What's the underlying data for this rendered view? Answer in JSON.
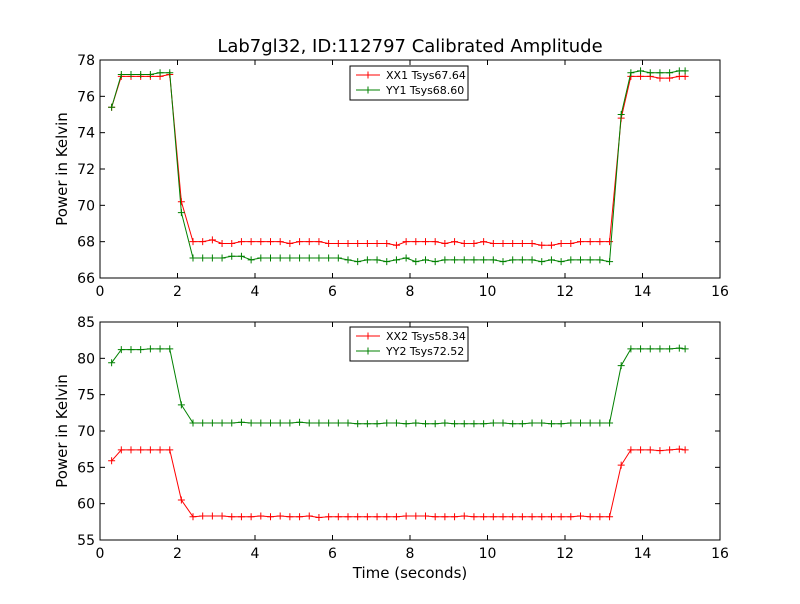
{
  "chart_data": [
    {
      "type": "line",
      "title": "Lab7gl32, ID:112797 Calibrated Amplitude",
      "xlabel": "",
      "ylabel": "Power in Kelvin",
      "xlim": [
        0,
        16
      ],
      "ylim": [
        66,
        78
      ],
      "xticks": [
        0,
        2,
        4,
        6,
        8,
        10,
        12,
        14,
        16
      ],
      "yticks": [
        66,
        68,
        70,
        72,
        74,
        76,
        78
      ],
      "legend_position": "top-center",
      "x": [
        0.3,
        0.55,
        0.8,
        1.05,
        1.3,
        1.55,
        1.8,
        2.1,
        2.4,
        2.65,
        2.9,
        3.15,
        3.4,
        3.65,
        3.9,
        4.15,
        4.4,
        4.65,
        4.9,
        5.15,
        5.4,
        5.65,
        5.9,
        6.15,
        6.4,
        6.65,
        6.9,
        7.15,
        7.4,
        7.65,
        7.9,
        8.15,
        8.4,
        8.65,
        8.9,
        9.15,
        9.4,
        9.65,
        9.9,
        10.15,
        10.4,
        10.65,
        10.9,
        11.15,
        11.4,
        11.65,
        11.9,
        12.15,
        12.4,
        12.65,
        12.9,
        13.15,
        13.45,
        13.7,
        13.95,
        14.2,
        14.45,
        14.7,
        14.95,
        15.1
      ],
      "series": [
        {
          "name": "XX1 Tsys67.64",
          "color": "#ff0000",
          "values": [
            75.4,
            77.1,
            77.1,
            77.1,
            77.1,
            77.1,
            77.2,
            70.2,
            68.0,
            68.0,
            68.1,
            67.9,
            67.9,
            68.0,
            68.0,
            68.0,
            68.0,
            68.0,
            67.9,
            68.0,
            68.0,
            68.0,
            67.9,
            67.9,
            67.9,
            67.9,
            67.9,
            67.9,
            67.9,
            67.8,
            68.0,
            68.0,
            68.0,
            68.0,
            67.9,
            68.0,
            67.9,
            67.9,
            68.0,
            67.9,
            67.9,
            67.9,
            67.9,
            67.9,
            67.8,
            67.8,
            67.9,
            67.9,
            68.0,
            68.0,
            68.0,
            68.0,
            74.8,
            77.1,
            77.1,
            77.1,
            77.0,
            77.0,
            77.1,
            77.1
          ]
        },
        {
          "name": "YY1 Tsys68.60",
          "color": "#008000",
          "values": [
            75.4,
            77.2,
            77.2,
            77.2,
            77.2,
            77.3,
            77.3,
            69.6,
            67.1,
            67.1,
            67.1,
            67.1,
            67.2,
            67.2,
            67.0,
            67.1,
            67.1,
            67.1,
            67.1,
            67.1,
            67.1,
            67.1,
            67.1,
            67.1,
            67.0,
            66.9,
            67.0,
            67.0,
            66.9,
            67.0,
            67.1,
            66.9,
            67.0,
            66.9,
            67.0,
            67.0,
            67.0,
            67.0,
            67.0,
            67.0,
            66.9,
            67.0,
            67.0,
            67.0,
            66.9,
            67.0,
            66.9,
            67.0,
            67.0,
            67.0,
            67.0,
            66.9,
            75.0,
            77.3,
            77.4,
            77.3,
            77.3,
            77.3,
            77.4,
            77.4
          ]
        }
      ]
    },
    {
      "type": "line",
      "title": "",
      "xlabel": "Time (seconds)",
      "ylabel": "Power in Kelvin",
      "xlim": [
        0,
        16
      ],
      "ylim": [
        55,
        85
      ],
      "xticks": [
        0,
        2,
        4,
        6,
        8,
        10,
        12,
        14,
        16
      ],
      "yticks": [
        55,
        60,
        65,
        70,
        75,
        80,
        85
      ],
      "legend_position": "top-center",
      "x": [
        0.3,
        0.55,
        0.8,
        1.05,
        1.3,
        1.55,
        1.8,
        2.1,
        2.4,
        2.65,
        2.9,
        3.15,
        3.4,
        3.65,
        3.9,
        4.15,
        4.4,
        4.65,
        4.9,
        5.15,
        5.4,
        5.65,
        5.9,
        6.15,
        6.4,
        6.65,
        6.9,
        7.15,
        7.4,
        7.65,
        7.9,
        8.15,
        8.4,
        8.65,
        8.9,
        9.15,
        9.4,
        9.65,
        9.9,
        10.15,
        10.4,
        10.65,
        10.9,
        11.15,
        11.4,
        11.65,
        11.9,
        12.15,
        12.4,
        12.65,
        12.9,
        13.15,
        13.45,
        13.7,
        13.95,
        14.2,
        14.45,
        14.7,
        14.95,
        15.1
      ],
      "series": [
        {
          "name": "XX2 Tsys58.34",
          "color": "#ff0000",
          "values": [
            65.9,
            67.4,
            67.4,
            67.4,
            67.4,
            67.4,
            67.4,
            60.5,
            58.2,
            58.3,
            58.3,
            58.3,
            58.2,
            58.2,
            58.2,
            58.3,
            58.2,
            58.3,
            58.2,
            58.2,
            58.3,
            58.1,
            58.2,
            58.2,
            58.2,
            58.2,
            58.2,
            58.2,
            58.2,
            58.2,
            58.3,
            58.3,
            58.3,
            58.2,
            58.2,
            58.2,
            58.3,
            58.2,
            58.2,
            58.2,
            58.2,
            58.2,
            58.2,
            58.2,
            58.2,
            58.2,
            58.2,
            58.2,
            58.3,
            58.2,
            58.2,
            58.2,
            65.3,
            67.4,
            67.4,
            67.4,
            67.3,
            67.4,
            67.5,
            67.4
          ]
        },
        {
          "name": "YY2 Tsys72.52",
          "color": "#008000",
          "values": [
            79.4,
            81.2,
            81.2,
            81.2,
            81.3,
            81.3,
            81.3,
            73.6,
            71.1,
            71.1,
            71.1,
            71.1,
            71.1,
            71.2,
            71.1,
            71.1,
            71.1,
            71.1,
            71.1,
            71.2,
            71.1,
            71.1,
            71.1,
            71.1,
            71.1,
            71.0,
            71.0,
            71.0,
            71.1,
            71.1,
            71.0,
            71.1,
            71.0,
            71.0,
            71.1,
            71.0,
            71.0,
            71.0,
            71.0,
            71.1,
            71.1,
            71.0,
            71.0,
            71.1,
            71.1,
            71.0,
            71.0,
            71.1,
            71.1,
            71.1,
            71.1,
            71.1,
            79.0,
            81.3,
            81.3,
            81.3,
            81.3,
            81.3,
            81.4,
            81.3
          ]
        }
      ]
    }
  ]
}
